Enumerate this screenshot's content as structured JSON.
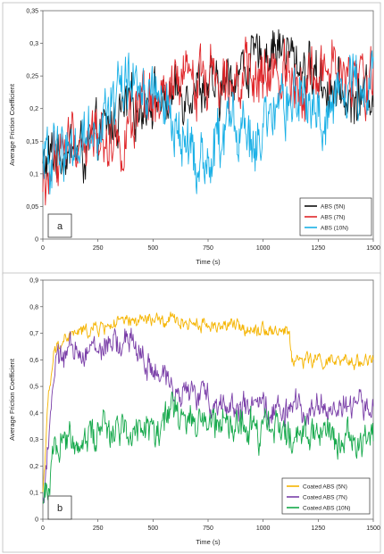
{
  "chart_data": [
    {
      "type": "line",
      "panel_label": "a",
      "xlabel": "Time (s)",
      "ylabel": "Average Friction Coefficient",
      "xlim": [
        0,
        1500
      ],
      "ylim": [
        0,
        0.35
      ],
      "xticks": [
        "0",
        "250",
        "500",
        "750",
        "1000",
        "1250",
        "1500"
      ],
      "yticks": [
        "0",
        "0,05",
        "0,1",
        "0,15",
        "0,2",
        "0,25",
        "0,3",
        "0,35"
      ],
      "grid": false,
      "legend_position": "bottom-right",
      "series": [
        {
          "name": "ABS (5N)",
          "color": "#111111",
          "x": [
            0,
            50,
            100,
            150,
            200,
            250,
            300,
            350,
            400,
            450,
            500,
            550,
            600,
            650,
            700,
            750,
            800,
            850,
            900,
            950,
            1000,
            1050,
            1100,
            1150,
            1200,
            1250,
            1300,
            1350,
            1400,
            1450,
            1500
          ],
          "y": [
            0.11,
            0.13,
            0.135,
            0.14,
            0.13,
            0.16,
            0.17,
            0.19,
            0.2,
            0.21,
            0.22,
            0.21,
            0.22,
            0.23,
            0.24,
            0.23,
            0.22,
            0.25,
            0.26,
            0.27,
            0.28,
            0.3,
            0.29,
            0.27,
            0.26,
            0.25,
            0.23,
            0.22,
            0.21,
            0.22,
            0.23
          ],
          "noise": 0.03
        },
        {
          "name": "ABS (7N)",
          "color": "#e0262a",
          "x": [
            0,
            50,
            100,
            150,
            200,
            250,
            300,
            350,
            400,
            450,
            500,
            550,
            600,
            650,
            700,
            750,
            800,
            850,
            900,
            950,
            1000,
            1050,
            1100,
            1150,
            1200,
            1250,
            1300,
            1350,
            1400,
            1450,
            1500
          ],
          "y": [
            0.07,
            0.12,
            0.14,
            0.15,
            0.15,
            0.16,
            0.16,
            0.15,
            0.17,
            0.19,
            0.2,
            0.21,
            0.23,
            0.24,
            0.25,
            0.25,
            0.26,
            0.26,
            0.25,
            0.24,
            0.24,
            0.25,
            0.26,
            0.25,
            0.24,
            0.25,
            0.26,
            0.25,
            0.24,
            0.24,
            0.25
          ],
          "noise": 0.035
        },
        {
          "name": "ABS (10N)",
          "color": "#1ab0e6",
          "x": [
            0,
            50,
            100,
            150,
            200,
            250,
            300,
            350,
            400,
            450,
            500,
            550,
            600,
            650,
            700,
            750,
            800,
            850,
            900,
            950,
            1000,
            1050,
            1100,
            1150,
            1200,
            1250,
            1300,
            1350,
            1400,
            1450,
            1500
          ],
          "y": [
            0.12,
            0.13,
            0.14,
            0.15,
            0.16,
            0.18,
            0.2,
            0.23,
            0.24,
            0.235,
            0.22,
            0.2,
            0.17,
            0.14,
            0.12,
            0.12,
            0.15,
            0.18,
            0.17,
            0.14,
            0.16,
            0.18,
            0.2,
            0.22,
            0.2,
            0.19,
            0.2,
            0.22,
            0.24,
            0.24,
            0.25
          ],
          "noise": 0.035
        }
      ]
    },
    {
      "type": "line",
      "panel_label": "b",
      "xlabel": "Time (s)",
      "ylabel": "Average Friction Coefficient",
      "xlim": [
        0,
        1500
      ],
      "ylim": [
        0,
        0.9
      ],
      "xticks": [
        "0",
        "250",
        "500",
        "750",
        "1000",
        "1250",
        "1500"
      ],
      "yticks": [
        "0",
        "0,1",
        "0,2",
        "0,3",
        "0,4",
        "0,5",
        "0,6",
        "0,7",
        "0,8",
        "0,9"
      ],
      "grid": false,
      "legend_position": "bottom-right",
      "series": [
        {
          "name": "Coated ABS (5N)",
          "color": "#f5b400",
          "x": [
            0,
            25,
            50,
            75,
            100,
            150,
            200,
            250,
            300,
            350,
            400,
            450,
            500,
            550,
            600,
            650,
            700,
            750,
            800,
            850,
            900,
            950,
            1000,
            1050,
            1100,
            1120,
            1130,
            1200,
            1250,
            1300,
            1350,
            1400,
            1450,
            1500
          ],
          "y": [
            0.1,
            0.45,
            0.62,
            0.66,
            0.68,
            0.7,
            0.71,
            0.72,
            0.73,
            0.74,
            0.74,
            0.75,
            0.75,
            0.74,
            0.75,
            0.74,
            0.74,
            0.73,
            0.73,
            0.73,
            0.72,
            0.72,
            0.72,
            0.71,
            0.71,
            0.7,
            0.6,
            0.6,
            0.6,
            0.59,
            0.59,
            0.59,
            0.6,
            0.6
          ],
          "noise": 0.02
        },
        {
          "name": "Coated ABS (7N)",
          "color": "#7a3fa8",
          "x": [
            0,
            25,
            50,
            75,
            100,
            150,
            200,
            250,
            300,
            350,
            400,
            450,
            500,
            550,
            600,
            650,
            700,
            750,
            800,
            850,
            900,
            950,
            1000,
            1050,
            1100,
            1150,
            1200,
            1250,
            1300,
            1350,
            1400,
            1450,
            1500
          ],
          "y": [
            0.05,
            0.3,
            0.55,
            0.6,
            0.62,
            0.63,
            0.64,
            0.64,
            0.65,
            0.66,
            0.67,
            0.62,
            0.55,
            0.52,
            0.5,
            0.48,
            0.47,
            0.45,
            0.44,
            0.43,
            0.42,
            0.42,
            0.41,
            0.41,
            0.41,
            0.41,
            0.42,
            0.42,
            0.42,
            0.42,
            0.43,
            0.43,
            0.43
          ],
          "noise": 0.04
        },
        {
          "name": "Coated ABS (10N)",
          "color": "#14a84a",
          "x": [
            0,
            25,
            50,
            75,
            100,
            150,
            200,
            250,
            300,
            350,
            400,
            450,
            500,
            550,
            600,
            650,
            700,
            750,
            800,
            850,
            900,
            950,
            1000,
            1050,
            1100,
            1150,
            1200,
            1250,
            1300,
            1350,
            1400,
            1450,
            1500
          ],
          "y": [
            0.03,
            0.15,
            0.28,
            0.3,
            0.3,
            0.3,
            0.32,
            0.33,
            0.34,
            0.35,
            0.35,
            0.34,
            0.33,
            0.38,
            0.4,
            0.38,
            0.37,
            0.36,
            0.35,
            0.35,
            0.34,
            0.34,
            0.33,
            0.33,
            0.33,
            0.32,
            0.32,
            0.32,
            0.32,
            0.31,
            0.31,
            0.31,
            0.31
          ],
          "noise": 0.05
        }
      ]
    }
  ]
}
